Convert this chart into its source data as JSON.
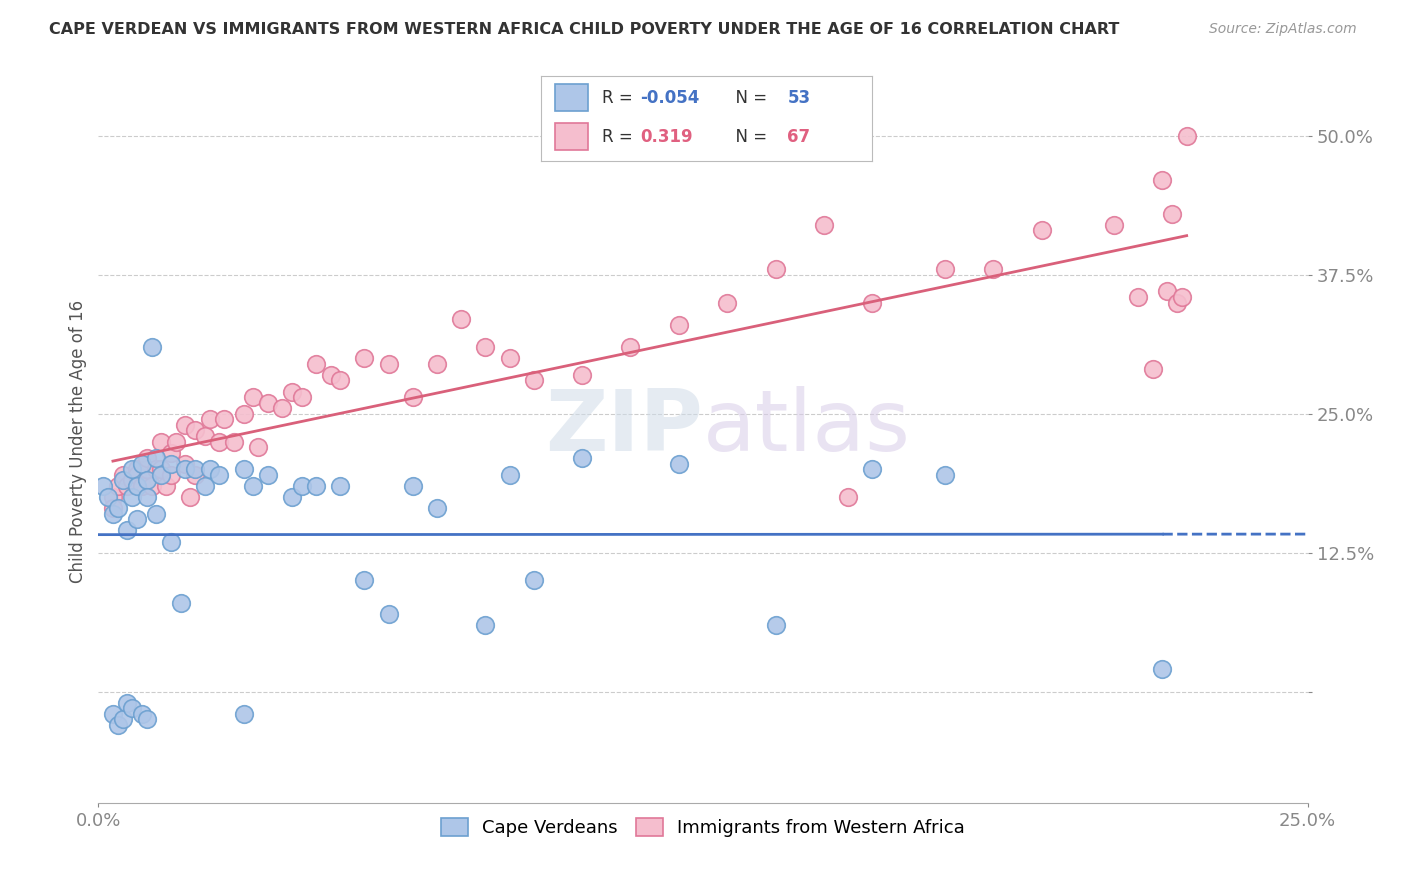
{
  "title": "CAPE VERDEAN VS IMMIGRANTS FROM WESTERN AFRICA CHILD POVERTY UNDER THE AGE OF 16 CORRELATION CHART",
  "source": "Source: ZipAtlas.com",
  "ylabel": "Child Poverty Under the Age of 16",
  "xlim": [
    0.0,
    0.25
  ],
  "ylim": [
    -0.1,
    0.55
  ],
  "ytick_vals": [
    0.0,
    0.125,
    0.25,
    0.375,
    0.5
  ],
  "ytick_labels": [
    "",
    "12.5%",
    "25.0%",
    "37.5%",
    "50.0%"
  ],
  "xtick_vals": [
    0.0,
    0.25
  ],
  "xtick_labels": [
    "0.0%",
    "25.0%"
  ],
  "legend_R1": "-0.054",
  "legend_N1": "53",
  "legend_R2": "0.319",
  "legend_N2": "67",
  "blue_fill": "#aec6e8",
  "blue_edge": "#6ca0d0",
  "pink_fill": "#f5bece",
  "pink_edge": "#e07898",
  "blue_line_color": "#4472c4",
  "pink_line_color": "#d9607a",
  "watermark": "ZIPAtlas",
  "background_color": "#ffffff",
  "grid_color": "#cccccc",
  "cv_x": [
    0.001,
    0.002,
    0.003,
    0.003,
    0.004,
    0.004,
    0.005,
    0.005,
    0.006,
    0.006,
    0.007,
    0.007,
    0.007,
    0.008,
    0.008,
    0.009,
    0.009,
    0.01,
    0.01,
    0.01,
    0.011,
    0.012,
    0.012,
    0.013,
    0.015,
    0.015,
    0.017,
    0.018,
    0.02,
    0.022,
    0.023,
    0.025,
    0.03,
    0.03,
    0.032,
    0.035,
    0.04,
    0.042,
    0.045,
    0.05,
    0.055,
    0.06,
    0.065,
    0.07,
    0.08,
    0.085,
    0.09,
    0.1,
    0.12,
    0.14,
    0.16,
    0.175,
    0.22
  ],
  "cv_y": [
    0.185,
    0.175,
    0.16,
    -0.02,
    0.165,
    -0.03,
    0.19,
    -0.025,
    0.145,
    -0.01,
    0.2,
    0.175,
    -0.015,
    0.185,
    0.155,
    0.205,
    -0.02,
    0.19,
    0.175,
    -0.025,
    0.31,
    0.16,
    0.21,
    0.195,
    0.205,
    0.135,
    0.08,
    0.2,
    0.2,
    0.185,
    0.2,
    0.195,
    0.2,
    -0.02,
    0.185,
    0.195,
    0.175,
    0.185,
    0.185,
    0.185,
    0.1,
    0.07,
    0.185,
    0.165,
    0.06,
    0.195,
    0.1,
    0.21,
    0.205,
    0.06,
    0.2,
    0.195,
    0.02
  ],
  "wa_x": [
    0.003,
    0.003,
    0.004,
    0.005,
    0.006,
    0.007,
    0.008,
    0.008,
    0.009,
    0.01,
    0.01,
    0.011,
    0.012,
    0.013,
    0.013,
    0.014,
    0.015,
    0.015,
    0.016,
    0.018,
    0.018,
    0.019,
    0.02,
    0.02,
    0.022,
    0.023,
    0.025,
    0.026,
    0.028,
    0.03,
    0.032,
    0.033,
    0.035,
    0.038,
    0.04,
    0.042,
    0.045,
    0.048,
    0.05,
    0.055,
    0.06,
    0.065,
    0.07,
    0.075,
    0.08,
    0.085,
    0.09,
    0.1,
    0.11,
    0.12,
    0.13,
    0.14,
    0.15,
    0.155,
    0.16,
    0.175,
    0.185,
    0.195,
    0.21,
    0.215,
    0.218,
    0.22,
    0.221,
    0.222,
    0.223,
    0.224,
    0.225
  ],
  "wa_y": [
    0.175,
    0.165,
    0.185,
    0.195,
    0.185,
    0.19,
    0.2,
    0.195,
    0.185,
    0.2,
    0.21,
    0.185,
    0.2,
    0.225,
    0.2,
    0.185,
    0.215,
    0.195,
    0.225,
    0.205,
    0.24,
    0.175,
    0.235,
    0.195,
    0.23,
    0.245,
    0.225,
    0.245,
    0.225,
    0.25,
    0.265,
    0.22,
    0.26,
    0.255,
    0.27,
    0.265,
    0.295,
    0.285,
    0.28,
    0.3,
    0.295,
    0.265,
    0.295,
    0.335,
    0.31,
    0.3,
    0.28,
    0.285,
    0.31,
    0.33,
    0.35,
    0.38,
    0.42,
    0.175,
    0.35,
    0.38,
    0.38,
    0.415,
    0.42,
    0.355,
    0.29,
    0.46,
    0.36,
    0.43,
    0.35,
    0.355,
    0.5
  ]
}
